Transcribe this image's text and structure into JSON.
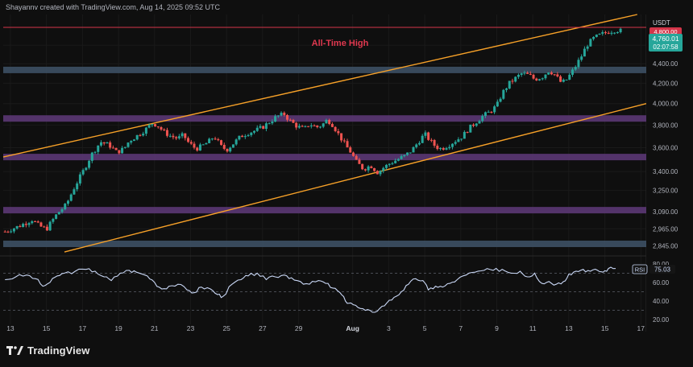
{
  "header": {
    "credit": "Shayannv created with TradingView.com, Aug 14, 2025 09:52 UTC"
  },
  "footer": {
    "brand": "TradingView"
  },
  "colors": {
    "background": "#0f0f0f",
    "up": "#26a69a",
    "down": "#ef5350",
    "channel": "#f7a128",
    "ath_line": "#d4364a",
    "ath_label": "#e0384f",
    "support_zone": "#5f3a7a",
    "blue_zone": "#3f5468",
    "rsi_line": "#c9d7f5"
  },
  "price_scale": {
    "currency": "USDT",
    "current_price": "4,760.01",
    "countdown": "02:07:58",
    "tick_labels": [
      "4,600.00",
      "4,400.00",
      "4,200.00",
      "4,000.00",
      "3,800.00",
      "3,600.00",
      "3,400.00",
      "3,250.00",
      "3,090.00",
      "2,965.00",
      "2,845.00"
    ],
    "ath_partial_label": "4,800.00"
  },
  "rsi_panel": {
    "name": "RSI",
    "value": "75.03",
    "tick_labels": [
      "80.00",
      "60.00",
      "40.00",
      "20.00"
    ]
  },
  "time_axis": {
    "labels": [
      "13",
      "15",
      "17",
      "19",
      "21",
      "23",
      "25",
      "27",
      "29",
      "Aug",
      "3",
      "5",
      "7",
      "9",
      "11",
      "13",
      "15",
      "17"
    ]
  },
  "chart_data": [
    {
      "type": "candlestick",
      "symbol": "ETH/USDT",
      "interval": "4h",
      "y_scale": "log",
      "ylim": [
        2800,
        4950
      ],
      "x_range_days": [
        12.6,
        48.3
      ],
      "x_ticks": [
        {
          "label": "13",
          "day": 13
        },
        {
          "label": "15",
          "day": 15
        },
        {
          "label": "17",
          "day": 17
        },
        {
          "label": "19",
          "day": 19
        },
        {
          "label": "21",
          "day": 21
        },
        {
          "label": "23",
          "day": 23
        },
        {
          "label": "25",
          "day": 25
        },
        {
          "label": "27",
          "day": 27
        },
        {
          "label": "29",
          "day": 29
        },
        {
          "label": "Aug",
          "day": 32
        },
        {
          "label": "3",
          "day": 34
        },
        {
          "label": "5",
          "day": 36
        },
        {
          "label": "7",
          "day": 38
        },
        {
          "label": "9",
          "day": 40
        },
        {
          "label": "11",
          "day": 42
        },
        {
          "label": "13",
          "day": 44
        },
        {
          "label": "15",
          "day": 46
        },
        {
          "label": "17",
          "day": 48
        }
      ],
      "y_ticks": [
        4600,
        4400,
        4200,
        4000,
        3800,
        3600,
        3400,
        3250,
        3090,
        2965,
        2845
      ],
      "candles_path": [
        [
          12.7,
          2945
        ],
        [
          13.5,
          2985
        ],
        [
          14.2,
          3030
        ],
        [
          14.6,
          2985
        ],
        [
          15.0,
          2962
        ],
        [
          15.3,
          3020
        ],
        [
          15.6,
          3075
        ],
        [
          16.1,
          3140
        ],
        [
          16.5,
          3260
        ],
        [
          17.1,
          3420
        ],
        [
          17.5,
          3540
        ],
        [
          18.0,
          3650
        ],
        [
          18.5,
          3620
        ],
        [
          18.9,
          3560
        ],
        [
          19.3,
          3590
        ],
        [
          19.6,
          3660
        ],
        [
          20.0,
          3700
        ],
        [
          20.5,
          3760
        ],
        [
          20.9,
          3820
        ],
        [
          21.2,
          3790
        ],
        [
          21.5,
          3740
        ],
        [
          21.9,
          3700
        ],
        [
          22.3,
          3680
        ],
        [
          22.6,
          3710
        ],
        [
          22.9,
          3640
        ],
        [
          23.3,
          3590
        ],
        [
          23.6,
          3610
        ],
        [
          24.0,
          3650
        ],
        [
          24.3,
          3700
        ],
        [
          24.7,
          3610
        ],
        [
          25.0,
          3580
        ],
        [
          25.4,
          3640
        ],
        [
          25.8,
          3700
        ],
        [
          26.2,
          3730
        ],
        [
          26.6,
          3750
        ],
        [
          27.0,
          3780
        ],
        [
          27.4,
          3830
        ],
        [
          27.8,
          3880
        ],
        [
          28.2,
          3900
        ],
        [
          28.5,
          3840
        ],
        [
          28.9,
          3790
        ],
        [
          29.3,
          3760
        ],
        [
          29.6,
          3810
        ],
        [
          30.0,
          3780
        ],
        [
          30.3,
          3800
        ],
        [
          30.6,
          3850
        ],
        [
          30.9,
          3800
        ],
        [
          31.2,
          3720
        ],
        [
          31.6,
          3620
        ],
        [
          31.9,
          3560
        ],
        [
          32.2,
          3480
        ],
        [
          32.6,
          3420
        ],
        [
          33.0,
          3450
        ],
        [
          33.4,
          3390
        ],
        [
          33.7,
          3430
        ],
        [
          34.1,
          3470
        ],
        [
          34.5,
          3500
        ],
        [
          34.9,
          3530
        ],
        [
          35.3,
          3580
        ],
        [
          35.7,
          3660
        ],
        [
          36.0,
          3720
        ],
        [
          36.3,
          3660
        ],
        [
          36.6,
          3610
        ],
        [
          36.9,
          3590
        ],
        [
          37.3,
          3620
        ],
        [
          37.7,
          3660
        ],
        [
          38.1,
          3700
        ],
        [
          38.4,
          3760
        ],
        [
          38.8,
          3820
        ],
        [
          39.2,
          3880
        ],
        [
          39.6,
          3920
        ],
        [
          40.0,
          3980
        ],
        [
          40.3,
          4100
        ],
        [
          40.7,
          4200
        ],
        [
          41.1,
          4260
        ],
        [
          41.4,
          4300
        ],
        [
          41.8,
          4280
        ],
        [
          42.1,
          4240
        ],
        [
          42.5,
          4260
        ],
        [
          42.9,
          4330
        ],
        [
          43.2,
          4290
        ],
        [
          43.6,
          4200
        ],
        [
          43.9,
          4240
        ],
        [
          44.3,
          4350
        ],
        [
          44.7,
          4480
        ],
        [
          45.0,
          4600
        ],
        [
          45.4,
          4680
        ],
        [
          45.8,
          4720
        ],
        [
          46.2,
          4750
        ],
        [
          46.6,
          4770
        ],
        [
          46.9,
          4760
        ]
      ],
      "resistance_zones": [
        {
          "price": 4335,
          "color": "blue"
        },
        {
          "price": 3860,
          "color": "purple"
        },
        {
          "price": 3520,
          "color": "purple"
        },
        {
          "price": 3100,
          "color": "purple"
        },
        {
          "price": 2860,
          "color": "blue"
        }
      ],
      "channel_lines": [
        {
          "from": {
            "day": 12.6,
            "price": 3520
          },
          "to": {
            "day": 47.8,
            "price": 4950
          }
        },
        {
          "from": {
            "day": 16.0,
            "price": 2805
          },
          "to": {
            "day": 48.3,
            "price": 4000
          }
        }
      ],
      "horizontal_line": {
        "price": 4800
      },
      "annotations": [
        {
          "text": "All-Time High"
        }
      ],
      "last_price": 4760.01
    },
    {
      "type": "line",
      "name": "RSI",
      "ylim": [
        15,
        85
      ],
      "y_ticks": [
        80,
        60,
        40,
        20
      ],
      "reference_levels": [
        70,
        50,
        30
      ],
      "path": [
        [
          12.7,
          63
        ],
        [
          13.3,
          66
        ],
        [
          13.9,
          68
        ],
        [
          14.4,
          64
        ],
        [
          14.8,
          56
        ],
        [
          15.2,
          60
        ],
        [
          15.6,
          67
        ],
        [
          16.0,
          70
        ],
        [
          16.6,
          72
        ],
        [
          17.2,
          74
        ],
        [
          17.7,
          72
        ],
        [
          18.2,
          66
        ],
        [
          18.6,
          62
        ],
        [
          19.1,
          70
        ],
        [
          19.6,
          73
        ],
        [
          20.0,
          71
        ],
        [
          20.6,
          67
        ],
        [
          21.0,
          60
        ],
        [
          21.4,
          53
        ],
        [
          21.8,
          56
        ],
        [
          22.3,
          58
        ],
        [
          22.8,
          52
        ],
        [
          23.2,
          49
        ],
        [
          23.6,
          55
        ],
        [
          24.1,
          53
        ],
        [
          24.5,
          47
        ],
        [
          24.8,
          45
        ],
        [
          25.3,
          58
        ],
        [
          25.8,
          63
        ],
        [
          26.2,
          67
        ],
        [
          26.7,
          70
        ],
        [
          27.2,
          63
        ],
        [
          27.7,
          66
        ],
        [
          28.2,
          68
        ],
        [
          28.6,
          65
        ],
        [
          29.1,
          61
        ],
        [
          29.6,
          58
        ],
        [
          30.1,
          62
        ],
        [
          30.5,
          59
        ],
        [
          30.9,
          54
        ],
        [
          31.3,
          49
        ],
        [
          31.6,
          40
        ],
        [
          31.9,
          38
        ],
        [
          32.3,
          33
        ],
        [
          32.7,
          30
        ],
        [
          33.1,
          28
        ],
        [
          33.5,
          32
        ],
        [
          33.9,
          38
        ],
        [
          34.3,
          44
        ],
        [
          34.7,
          50
        ],
        [
          35.1,
          58
        ],
        [
          35.5,
          64
        ],
        [
          35.9,
          62
        ],
        [
          36.2,
          52
        ],
        [
          36.6,
          56
        ],
        [
          37.0,
          55
        ],
        [
          37.4,
          59
        ],
        [
          37.8,
          63
        ],
        [
          38.3,
          68
        ],
        [
          38.8,
          71
        ],
        [
          39.3,
          73
        ],
        [
          39.8,
          73
        ],
        [
          40.3,
          74
        ],
        [
          40.8,
          70
        ],
        [
          41.3,
          72
        ],
        [
          41.7,
          66
        ],
        [
          42.1,
          70
        ],
        [
          42.5,
          59
        ],
        [
          42.9,
          61
        ],
        [
          43.3,
          58
        ],
        [
          43.7,
          61
        ],
        [
          44.0,
          69
        ],
        [
          44.4,
          72
        ],
        [
          44.8,
          74
        ],
        [
          45.2,
          72
        ],
        [
          45.6,
          73
        ],
        [
          45.9,
          71
        ],
        [
          46.2,
          75
        ],
        [
          46.6,
          75
        ]
      ],
      "last_value": 75.03
    }
  ]
}
